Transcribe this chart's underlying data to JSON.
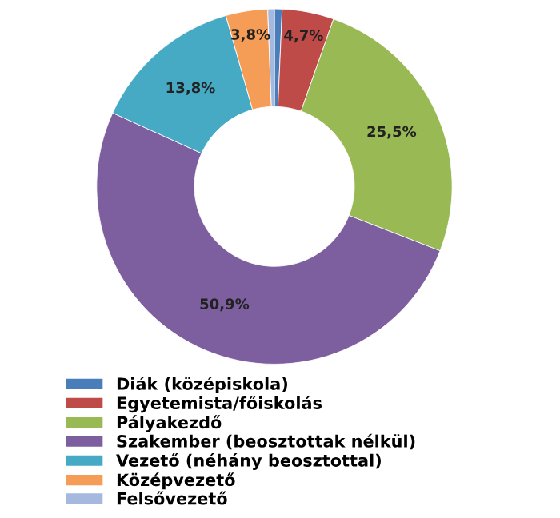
{
  "chart_data": {
    "type": "donut",
    "categories": [
      "Diák (középiskola)",
      "Egyetemista/főiskolás",
      "Pályakezdő",
      "Szakember (beosztottak nélkül)",
      "Vezető (néhány beosztottal)",
      "Középvezető",
      "Felsővezető"
    ],
    "values": [
      0.7,
      4.7,
      25.5,
      50.9,
      13.8,
      3.8,
      0.6
    ],
    "colors": [
      "#4a7ebb",
      "#be4b48",
      "#98b954",
      "#7d5fa0",
      "#46aac5",
      "#f59d56",
      "#a5b9df"
    ],
    "value_labels": [
      null,
      "4,7%",
      "25,5%",
      "50,9%",
      "13,8%",
      "3,8%",
      null
    ],
    "legend": "bottom left"
  }
}
